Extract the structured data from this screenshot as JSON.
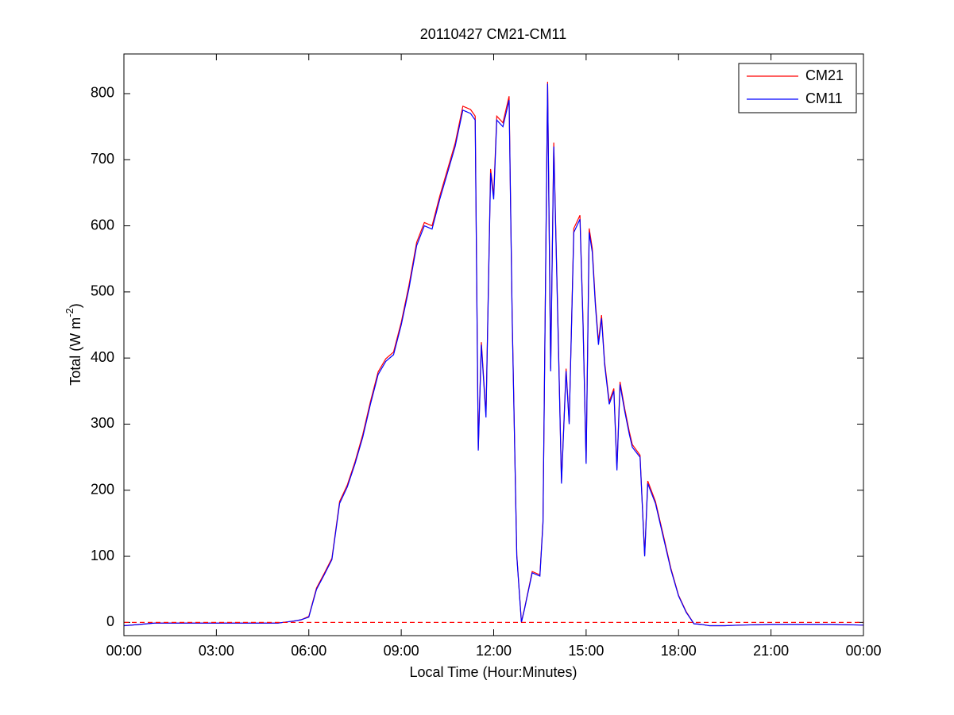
{
  "chart_data": {
    "type": "line",
    "title": "20110427 CM21-CM11",
    "xlabel": "Local Time (Hour:Minutes)",
    "ylabel": {
      "text": "Total (W m",
      "superscript": "-2",
      "suffix": ")"
    },
    "x": [
      0,
      0.5,
      1,
      1.5,
      2,
      3,
      4,
      4.5,
      5,
      5.5,
      5.75,
      6,
      6.25,
      6.5,
      6.75,
      7,
      7.25,
      7.5,
      7.75,
      8,
      8.25,
      8.5,
      8.75,
      9,
      9.25,
      9.5,
      9.75,
      10,
      10.25,
      10.5,
      10.75,
      11,
      11.25,
      11.4,
      11.5,
      11.6,
      11.75,
      11.9,
      12,
      12.1,
      12.3,
      12.5,
      12.6,
      12.75,
      12.9,
      13,
      13.25,
      13.5,
      13.6,
      13.75,
      13.85,
      13.95,
      14.1,
      14.2,
      14.35,
      14.45,
      14.6,
      14.7,
      14.8,
      14.9,
      15,
      15.1,
      15.2,
      15.3,
      15.4,
      15.5,
      15.6,
      15.75,
      15.9,
      16,
      16.1,
      16.25,
      16.4,
      16.5,
      16.75,
      16.9,
      17,
      17.25,
      17.5,
      17.75,
      18,
      18.25,
      18.5,
      18.75,
      19,
      19.5,
      20,
      21,
      22,
      23,
      24
    ],
    "series": [
      {
        "name": "CM21",
        "color": "#ff0000",
        "values": [
          -5,
          -3,
          -1,
          -1,
          -1,
          -1,
          -1,
          -1,
          -1,
          2,
          4,
          9,
          52,
          74,
          97,
          183,
          208,
          243,
          284,
          334,
          379,
          399,
          409,
          454,
          510,
          575,
          605,
          600,
          645,
          685,
          725,
          781,
          776,
          766,
          263,
          424,
          314,
          686,
          646,
          766,
          756,
          796,
          464,
          102,
          1,
          21,
          77,
          72,
          153,
          818,
          384,
          726,
          425,
          213,
          384,
          303,
          596,
          606,
          616,
          455,
          243,
          596,
          566,
          485,
          425,
          465,
          394,
          334,
          354,
          233,
          364,
          324,
          289,
          269,
          253,
          102,
          214,
          183,
          133,
          82,
          41,
          16,
          -2,
          -3,
          -5,
          -5,
          -4,
          -3,
          -3,
          -3,
          -4
        ]
      },
      {
        "name": "CM11",
        "color": "#0000ff",
        "values": [
          -5,
          -3,
          -1,
          -1,
          -1,
          -1,
          -1,
          -1,
          -1,
          2,
          4,
          8,
          50,
          72,
          95,
          180,
          205,
          240,
          280,
          330,
          375,
          395,
          405,
          450,
          505,
          570,
          600,
          595,
          640,
          680,
          720,
          775,
          770,
          760,
          260,
          420,
          310,
          680,
          640,
          760,
          750,
          790,
          460,
          100,
          0,
          20,
          75,
          70,
          150,
          815,
          380,
          720,
          420,
          210,
          380,
          300,
          590,
          600,
          610,
          450,
          240,
          590,
          560,
          480,
          420,
          460,
          390,
          330,
          350,
          230,
          360,
          320,
          285,
          265,
          250,
          100,
          210,
          180,
          130,
          80,
          40,
          15,
          -2,
          -3,
          -5,
          -5,
          -4,
          -3,
          -3,
          -3,
          -4
        ]
      }
    ],
    "xlim": [
      0,
      24
    ],
    "xticks": [
      {
        "value": 0,
        "label": "00:00"
      },
      {
        "value": 3,
        "label": "03:00"
      },
      {
        "value": 6,
        "label": "06:00"
      },
      {
        "value": 9,
        "label": "09:00"
      },
      {
        "value": 12,
        "label": "12:00"
      },
      {
        "value": 15,
        "label": "15:00"
      },
      {
        "value": 18,
        "label": "18:00"
      },
      {
        "value": 21,
        "label": "21:00"
      },
      {
        "value": 24,
        "label": "00:00"
      }
    ],
    "ylim": [
      -20,
      860
    ],
    "yticks": [
      0,
      100,
      200,
      300,
      400,
      500,
      600,
      700,
      800
    ],
    "reference_line": {
      "value": 0,
      "color": "#ff0000",
      "dashed": true
    },
    "legend": "northeast"
  }
}
